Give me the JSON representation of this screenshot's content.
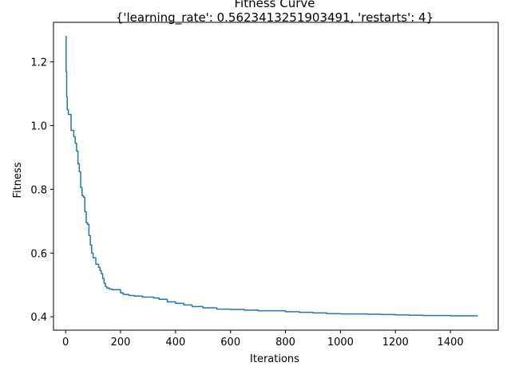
{
  "chart_data": {
    "type": "line",
    "title": "Fitness Curve",
    "subtitle": "{'learning_rate': 0.5623413251903491, 'restarts': 4}",
    "xlabel": "Iterations",
    "ylabel": "Fitness",
    "xlim": [
      -44,
      1574
    ],
    "ylim": [
      0.358,
      1.324
    ],
    "xticks": [
      0,
      200,
      400,
      600,
      800,
      1000,
      1200,
      1400
    ],
    "yticks": [
      0.4,
      0.6,
      0.8,
      1.0,
      1.2
    ],
    "xtick_labels": [
      "0",
      "200",
      "400",
      "600",
      "800",
      "1000",
      "1200",
      "1400"
    ],
    "ytick_labels": [
      "0.4",
      "0.6",
      "0.8",
      "1.0",
      "1.2"
    ],
    "grid": false,
    "series": [
      {
        "color": "#1f77b4",
        "step": true,
        "x": [
          0,
          2,
          4,
          6,
          10,
          20,
          30,
          35,
          40,
          45,
          50,
          55,
          60,
          65,
          70,
          75,
          80,
          85,
          90,
          95,
          100,
          110,
          115,
          120,
          125,
          130,
          135,
          140,
          145,
          150,
          160,
          170,
          200,
          210,
          230,
          250,
          280,
          320,
          340,
          370,
          400,
          430,
          460,
          500,
          550,
          600,
          650,
          700,
          800,
          850,
          900,
          950,
          1000,
          1100,
          1150,
          1200,
          1250,
          1300,
          1350,
          1400,
          1500
        ],
        "y": [
          1.28,
          1.17,
          1.09,
          1.05,
          1.035,
          0.985,
          0.965,
          0.945,
          0.92,
          0.88,
          0.855,
          0.805,
          0.78,
          0.775,
          0.73,
          0.695,
          0.69,
          0.655,
          0.625,
          0.6,
          0.585,
          0.565,
          0.565,
          0.555,
          0.545,
          0.535,
          0.52,
          0.505,
          0.495,
          0.49,
          0.487,
          0.485,
          0.475,
          0.47,
          0.467,
          0.465,
          0.462,
          0.459,
          0.455,
          0.447,
          0.442,
          0.437,
          0.432,
          0.428,
          0.424,
          0.423,
          0.421,
          0.419,
          0.416,
          0.414,
          0.412,
          0.41,
          0.409,
          0.408,
          0.407,
          0.406,
          0.405,
          0.404,
          0.404,
          0.403,
          0.403
        ]
      }
    ]
  }
}
